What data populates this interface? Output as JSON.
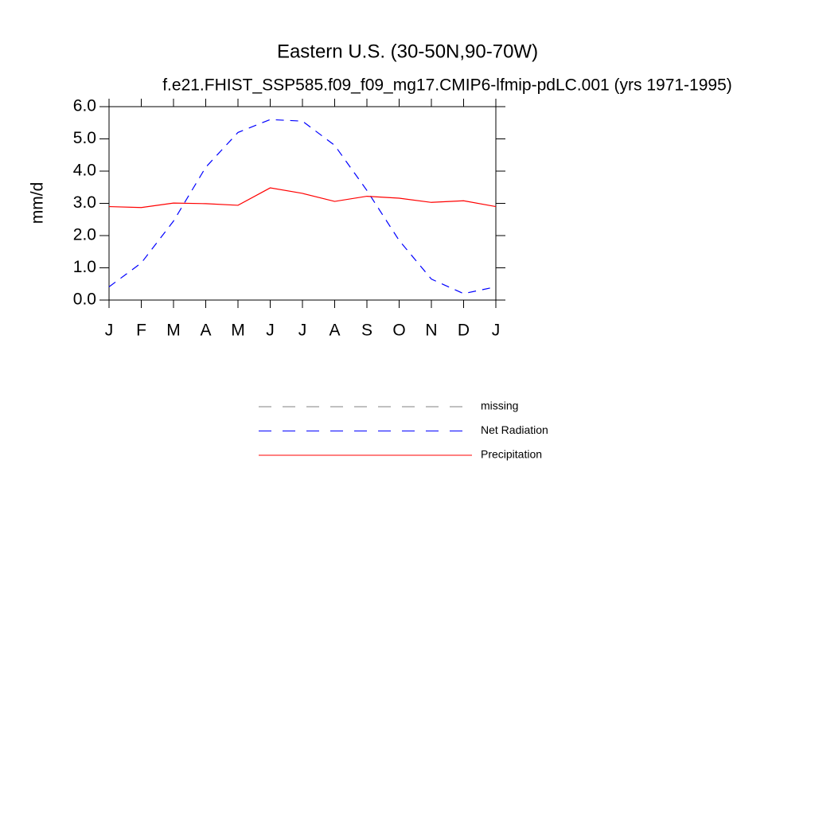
{
  "chart_data": {
    "type": "line",
    "title": "Eastern U.S. (30-50N,90-70W)",
    "subtitle": "f.e21.FHIST_SSP585.f09_f09_mg17.CMIP6-lfmip-pdLC.001 (yrs 1971-1995)",
    "y_label": "mm/d",
    "categories": [
      "J",
      "F",
      "M",
      "A",
      "M",
      "J",
      "J",
      "A",
      "S",
      "O",
      "N",
      "D",
      "J"
    ],
    "ylim": [
      0,
      6
    ],
    "yticks": [
      {
        "value": 0,
        "label": "0.0"
      },
      {
        "value": 1,
        "label": "1.0"
      },
      {
        "value": 2,
        "label": "2.0"
      },
      {
        "value": 3,
        "label": "3.0"
      },
      {
        "value": 4,
        "label": "4.0"
      },
      {
        "value": 5,
        "label": "5.0"
      },
      {
        "value": 6,
        "label": "6.0"
      }
    ],
    "series": [
      {
        "name": "missing",
        "color": "#808080",
        "dashed": true,
        "values": [
          null,
          null,
          null,
          null,
          null,
          null,
          null,
          null,
          null,
          null,
          null,
          null,
          null
        ]
      },
      {
        "name": "Net Radiation",
        "color": "#0000ff",
        "dashed": true,
        "values": [
          0.41,
          1.15,
          2.45,
          4.12,
          5.2,
          5.6,
          5.55,
          4.8,
          3.4,
          1.85,
          0.65,
          0.2,
          0.41
        ]
      },
      {
        "name": "Precipitation",
        "color": "#ff0000",
        "dashed": false,
        "values": [
          2.9,
          2.87,
          3.01,
          2.99,
          2.94,
          3.48,
          3.31,
          3.06,
          3.22,
          3.16,
          3.03,
          3.08,
          2.9
        ]
      }
    ]
  }
}
